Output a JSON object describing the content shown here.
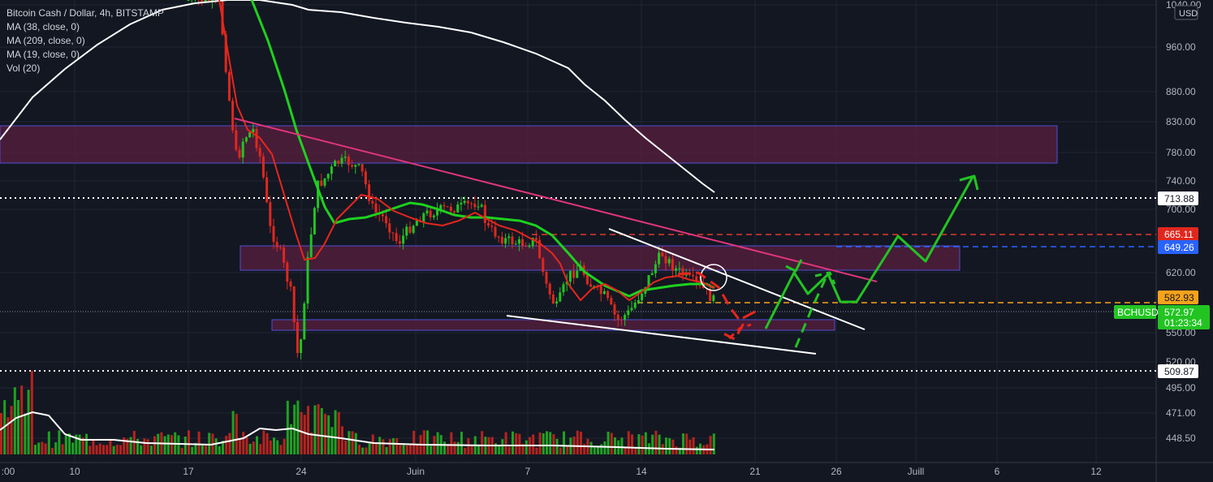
{
  "legend": {
    "title": "Bitcoin Cash / Dollar, 4h, BITSTAMP",
    "ma38": "MA (38, close, 0)",
    "ma209": "MA (209, close, 0)",
    "ma19": "MA (19, close, 0)",
    "vol": "Vol (20)"
  },
  "currency_badge": "USD",
  "symbol_label": "BCHUSD",
  "last_price": "572.97",
  "countdown": "01:23:34",
  "price_tags": {
    "t713": "713.88",
    "t665": "665.11",
    "t649": "649.26",
    "t582": "582.93",
    "t509": "509.87"
  },
  "colors": {
    "background": "#131722",
    "up": "#26a69a",
    "bull": "#22c422",
    "bear": "#e0271e",
    "ma38": "#1ed11e",
    "ma19": "#e8261c",
    "ma209": "#ffffff",
    "zone": "#5a1f3f",
    "trendline": "#e0357a"
  },
  "chart_data": {
    "type": "candlestick",
    "title": "Bitcoin Cash / Dollar, 4h, BITSTAMP",
    "x_ticks": [
      ":00",
      "10",
      "17",
      "24",
      "Juin",
      "7",
      "14",
      "21",
      "26",
      "Juill",
      "6",
      "12"
    ],
    "y_ticks": [
      "1040.00",
      "960.00",
      "880.00",
      "830.00",
      "780.00",
      "740.00",
      "700.00",
      "620.00",
      "550.00",
      "520.00",
      "495.00",
      "471.00",
      "448.50"
    ],
    "horizontal_levels": [
      713.88,
      665.11,
      649.26,
      582.93,
      572.97,
      509.87
    ],
    "zones": [
      [
        765,
        825
      ],
      [
        620,
        652
      ],
      [
        550,
        564
      ]
    ],
    "series": [
      {
        "name": "MA (38, close, 0)"
      },
      {
        "name": "MA (209, close, 0)"
      },
      {
        "name": "MA (19, close, 0)"
      },
      {
        "name": "Vol (20)"
      }
    ]
  }
}
